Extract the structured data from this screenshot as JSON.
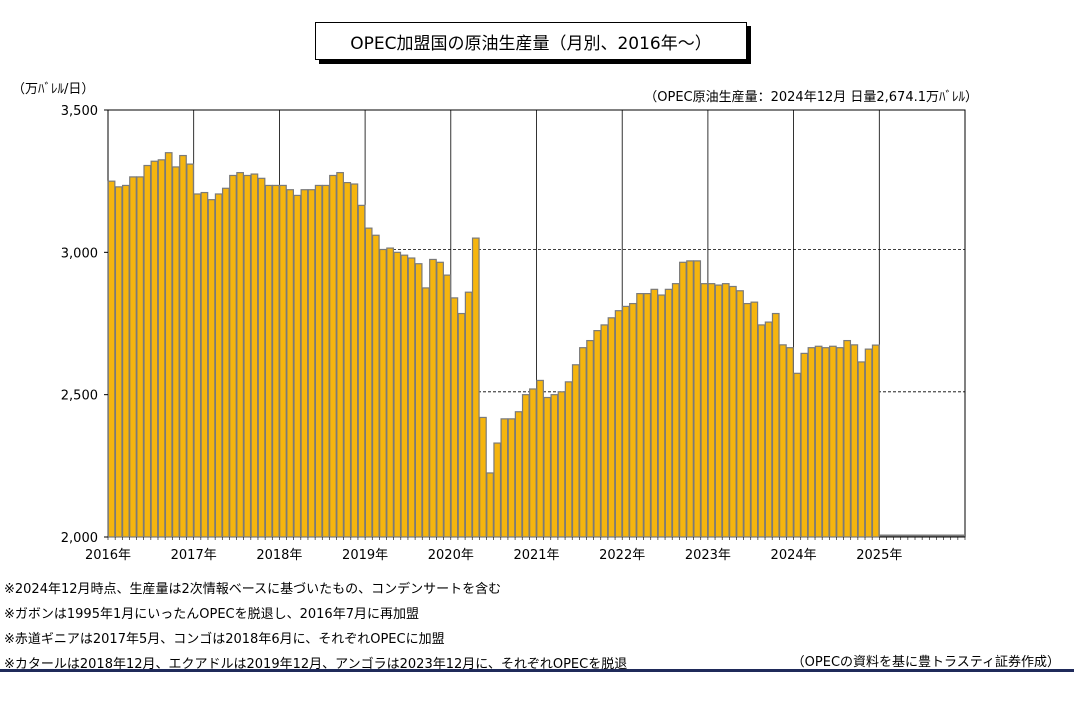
{
  "title": "OPEC加盟国の原油生産量（月別、2016年～）",
  "unit_label": "（万ﾊﾞﾚﾙ/日）",
  "current_note": "（OPEC原油生産量：2024年12月  日量2,674.1万ﾊﾞﾚﾙ）",
  "notes": [
    "※2024年12月時点、生産量は2次情報ベースに基づいたもの、コンデンサートを含む",
    "※ガボンは1995年1月にいったんOPECを脱退し、2016年7月に再加盟",
    "※赤道ギニアは2017年5月、コンゴは2018年6月に、それぞれOPECに加盟",
    "※カタールは2018年12月、エクアドルは2019年12月、アンゴラは2023年12月に、それぞれOPECを脱退"
  ],
  "source": "（OPECの資料を基に豊トラスティ証券作成）",
  "colors": {
    "bar_fill": "#f5b50e",
    "bar_edge": "#7a7a7a"
  },
  "chart_data": {
    "type": "bar",
    "ylim": [
      2000,
      3500
    ],
    "yticks": [
      "2,000",
      "2,500",
      "3,000",
      "3,500"
    ],
    "ytick_values": [
      2000,
      2500,
      3000,
      3500
    ],
    "xtick_labels": [
      "2016年",
      "2017年",
      "2018年",
      "2019年",
      "2020年",
      "2021年",
      "2022年",
      "2023年",
      "2024年",
      "2025年"
    ],
    "start_month": "2016-01",
    "months_axis": 120,
    "reference_lines": [
      3010,
      2510
    ],
    "values": [
      3250,
      3230,
      3235,
      3265,
      3265,
      3305,
      3320,
      3325,
      3350,
      3300,
      3340,
      3310,
      3205,
      3210,
      3185,
      3205,
      3225,
      3270,
      3280,
      3270,
      3275,
      3260,
      3235,
      3235,
      3235,
      3220,
      3200,
      3220,
      3220,
      3235,
      3235,
      3270,
      3280,
      3245,
      3240,
      3165,
      3085,
      3060,
      3010,
      3015,
      3000,
      2990,
      2980,
      2960,
      2875,
      2975,
      2965,
      2920,
      2840,
      2785,
      2860,
      3050,
      2420,
      2225,
      2330,
      2415,
      2415,
      2440,
      2500,
      2520,
      2550,
      2490,
      2500,
      2510,
      2545,
      2605,
      2665,
      2690,
      2725,
      2745,
      2770,
      2795,
      2810,
      2820,
      2855,
      2855,
      2870,
      2850,
      2870,
      2890,
      2965,
      2970,
      2970,
      2890,
      2890,
      2885,
      2890,
      2880,
      2865,
      2820,
      2825,
      2745,
      2755,
      2785,
      2675,
      2665,
      2575,
      2645,
      2665,
      2670,
      2665,
      2670,
      2665,
      2690,
      2675,
      2615,
      2660,
      2674.1
    ]
  }
}
